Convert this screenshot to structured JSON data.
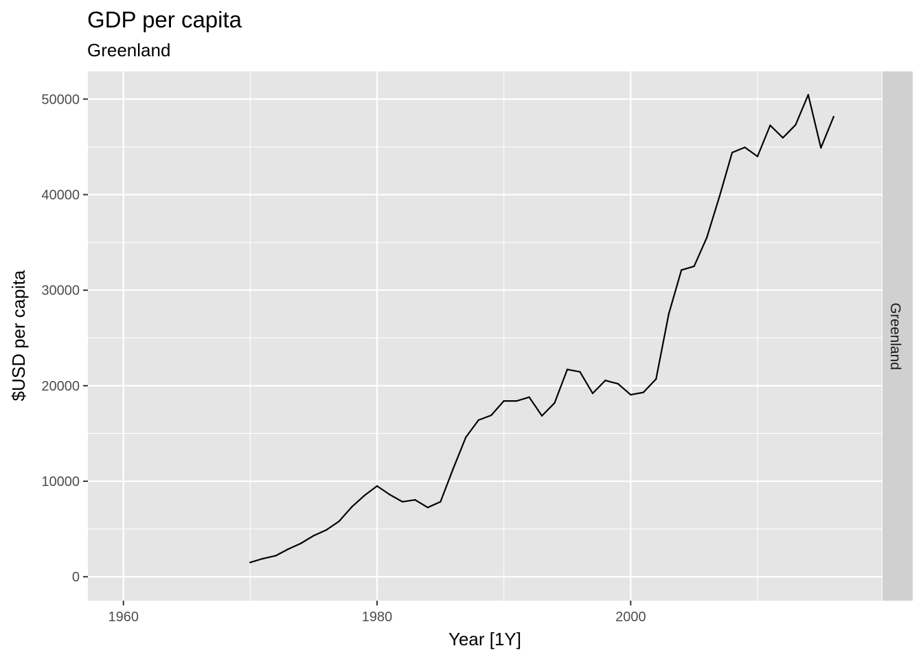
{
  "chart_data": {
    "type": "line",
    "title": "GDP per capita",
    "subtitle": "Greenland",
    "xlabel": "Year [1Y]",
    "ylabel": "$USD per capita",
    "facet_label": "Greenland",
    "xlim": [
      1957.2,
      2019.8
    ],
    "ylim": [
      -2500,
      52900
    ],
    "x_ticks": [
      1960,
      1980,
      2000
    ],
    "x_minor_ticks": [
      1970,
      1990,
      2010
    ],
    "y_ticks": [
      0,
      10000,
      20000,
      30000,
      40000,
      50000
    ],
    "y_minor_ticks": [
      5000,
      15000,
      25000,
      35000,
      45000
    ],
    "grid": true,
    "colors": {
      "panel_background": "#e5e5e5",
      "grid": "#ffffff",
      "strip_background": "#d0d0d0",
      "line": "#000000"
    },
    "series": [
      {
        "x": [
          1970,
          1971,
          1972,
          1973,
          1974,
          1975,
          1976,
          1977,
          1978,
          1979,
          1980,
          1981,
          1982,
          1983,
          1984,
          1985,
          1986,
          1987,
          1988,
          1989,
          1990,
          1991,
          1992,
          1993,
          1994,
          1995,
          1996,
          1997,
          1998,
          1999,
          2000,
          2001,
          2002,
          2003,
          2004,
          2005,
          2006,
          2007,
          2008,
          2009,
          2010,
          2011,
          2012,
          2013,
          2014,
          2015,
          2016
        ],
        "values": [
          1500,
          1900,
          2200,
          2900,
          3500,
          4300,
          4900,
          5800,
          7300,
          8500,
          9500,
          8600,
          7850,
          8050,
          7250,
          7850,
          11300,
          14600,
          16400,
          16900,
          18400,
          18400,
          18800,
          16850,
          18200,
          21700,
          21450,
          19200,
          20550,
          20200,
          19050,
          19300,
          20700,
          27500,
          32100,
          32500,
          35500,
          39800,
          44400,
          44950,
          44000,
          47250,
          45950,
          47300,
          50450,
          44900,
          48150
        ]
      }
    ]
  }
}
